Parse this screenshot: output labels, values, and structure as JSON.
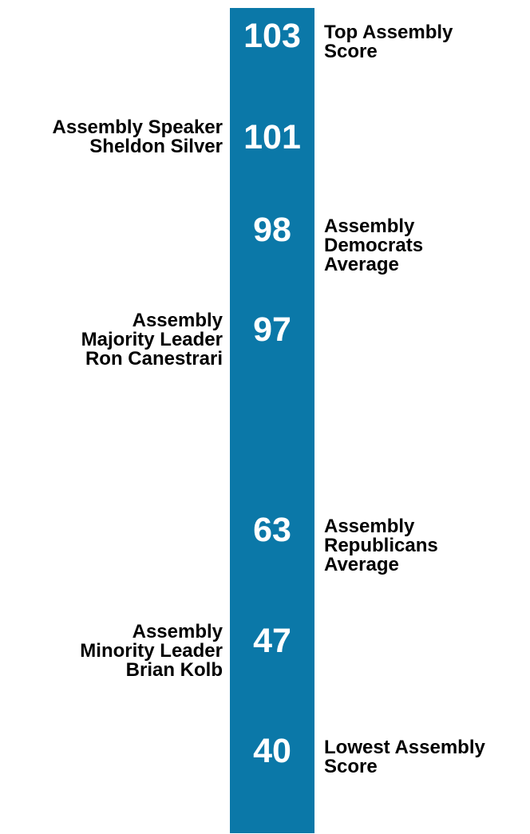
{
  "colors": {
    "bar": "#0b78a8",
    "value_text": "#ffffff",
    "label_text": "#000000"
  },
  "chart_data": {
    "type": "bar",
    "orientation": "vertical-scale",
    "title": "",
    "ylabel": "",
    "xlabel": "",
    "entries": [
      {
        "value": 103,
        "label": "Top Assembly\nScore",
        "side": "right"
      },
      {
        "value": 101,
        "label": "Assembly Speaker\nSheldon Silver",
        "side": "left"
      },
      {
        "value": 98,
        "label": "Assembly\nDemocrats\nAverage",
        "side": "right"
      },
      {
        "value": 97,
        "label": "Assembly\nMajority Leader\nRon Canestrari",
        "side": "left"
      },
      {
        "value": 63,
        "label": "Assembly\nRepublicans\nAverage",
        "side": "right"
      },
      {
        "value": 47,
        "label": "Assembly\nMinority Leader\nBrian Kolb",
        "side": "left"
      },
      {
        "value": 40,
        "label": "Lowest Assembly\nScore",
        "side": "right"
      }
    ]
  }
}
